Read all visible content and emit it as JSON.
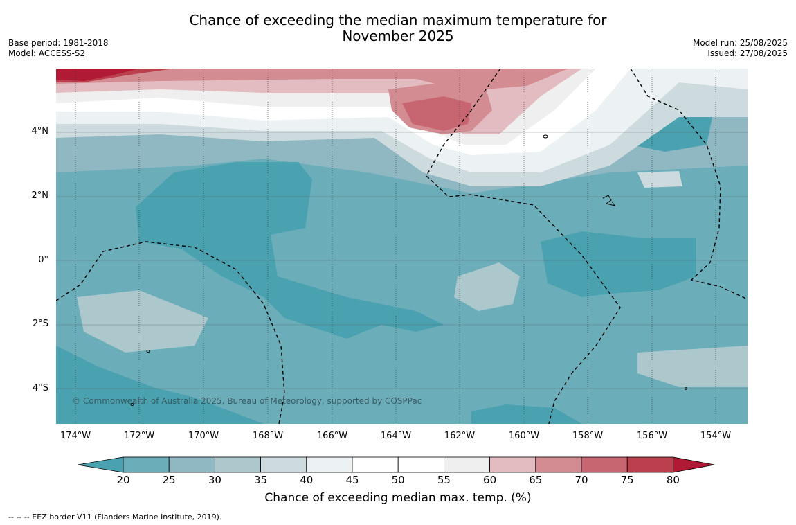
{
  "title_line1": "Chance of exceeding the median maximum temperature for",
  "title_line2": "November 2025",
  "meta_left": {
    "base_period": "Base period: 1981-2018",
    "model": "Model: ACCESS-S2"
  },
  "meta_right": {
    "model_run": "Model run: 25/08/2025",
    "issued": "Issued: 27/08/2025"
  },
  "copyright": "© Commonwealth of Australia 2025, Bureau of Meteorology, supported by COSPPac",
  "lat_labels": [
    "4°N",
    "2°N",
    "0°",
    "2°S",
    "4°S"
  ],
  "lon_labels": [
    "174°W",
    "172°W",
    "170°W",
    "168°W",
    "166°W",
    "164°W",
    "162°W",
    "160°W",
    "158°W",
    "156°W",
    "154°W"
  ],
  "colorbar": {
    "ticks": [
      "20",
      "25",
      "30",
      "35",
      "40",
      "45",
      "50",
      "55",
      "60",
      "65",
      "70",
      "75",
      "80"
    ],
    "colors": [
      "#4aa1b0",
      "#6cadba",
      "#8fb8c3",
      "#acc8cd",
      "#cddbdf",
      "#ecf2f3",
      "#ffffff",
      "#ffffff",
      "#efefef",
      "#e2bcc0",
      "#d48c93",
      "#c76671",
      "#bc3f4e",
      "#b01a34"
    ],
    "label": "Chance of exceeding median max. temp. (%)"
  },
  "eez_note": "--  --  -- EEZ border V11 (Flanders Marine Institute, 2019)."
}
